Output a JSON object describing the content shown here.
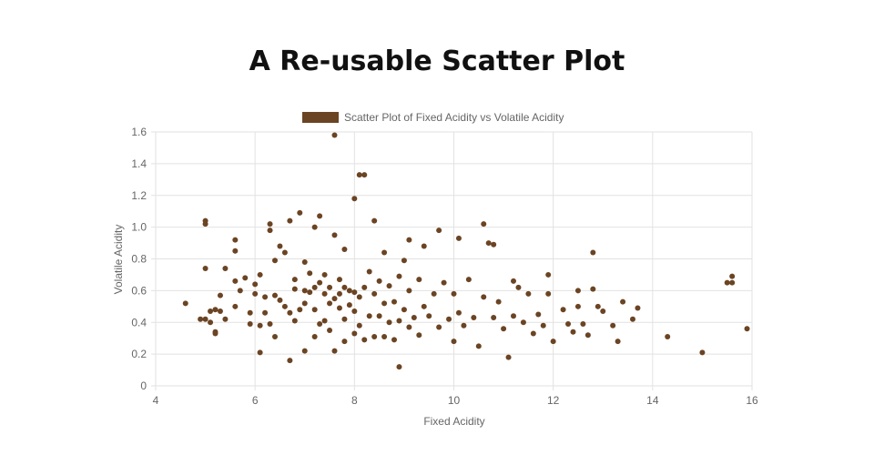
{
  "page": {
    "title": "A Re-usable Scatter Plot"
  },
  "chart_data": {
    "type": "scatter",
    "title": "",
    "xlabel": "Fixed Acidity",
    "ylabel": "Volatile Acidity",
    "xlim": [
      4,
      16
    ],
    "ylim": [
      0,
      1.6
    ],
    "xticks": [
      "4",
      "6",
      "8",
      "10",
      "12",
      "14",
      "16"
    ],
    "yticks": [
      "0",
      "0.2",
      "0.4",
      "0.6",
      "0.8",
      "1.0",
      "1.2",
      "1.4",
      "1.6"
    ],
    "grid": true,
    "legend_position": "top",
    "series": [
      {
        "name": "Scatter Plot of Fixed Acidity vs Volatile Acidity",
        "color": "#6b4423",
        "points": [
          [
            4.6,
            0.52
          ],
          [
            4.9,
            0.42
          ],
          [
            5.0,
            1.04
          ],
          [
            5.0,
            1.02
          ],
          [
            5.0,
            0.74
          ],
          [
            5.0,
            0.42
          ],
          [
            5.1,
            0.4
          ],
          [
            5.1,
            0.47
          ],
          [
            5.2,
            0.33
          ],
          [
            5.2,
            0.34
          ],
          [
            5.2,
            0.48
          ],
          [
            5.3,
            0.57
          ],
          [
            5.3,
            0.47
          ],
          [
            5.4,
            0.42
          ],
          [
            5.4,
            0.74
          ],
          [
            5.6,
            0.92
          ],
          [
            5.6,
            0.85
          ],
          [
            5.6,
            0.66
          ],
          [
            5.6,
            0.5
          ],
          [
            5.7,
            0.6
          ],
          [
            5.8,
            0.68
          ],
          [
            5.9,
            0.46
          ],
          [
            5.9,
            0.39
          ],
          [
            6.0,
            0.58
          ],
          [
            6.0,
            0.64
          ],
          [
            6.1,
            0.21
          ],
          [
            6.1,
            0.38
          ],
          [
            6.1,
            0.7
          ],
          [
            6.2,
            0.46
          ],
          [
            6.2,
            0.56
          ],
          [
            6.3,
            1.02
          ],
          [
            6.3,
            0.98
          ],
          [
            6.3,
            0.39
          ],
          [
            6.4,
            0.57
          ],
          [
            6.4,
            0.31
          ],
          [
            6.4,
            0.79
          ],
          [
            6.5,
            0.88
          ],
          [
            6.5,
            0.54
          ],
          [
            6.6,
            0.84
          ],
          [
            6.6,
            0.5
          ],
          [
            6.7,
            0.16
          ],
          [
            6.7,
            1.04
          ],
          [
            6.7,
            0.46
          ],
          [
            6.8,
            0.61
          ],
          [
            6.8,
            0.41
          ],
          [
            6.8,
            0.67
          ],
          [
            6.9,
            1.09
          ],
          [
            6.9,
            0.48
          ],
          [
            7.0,
            0.6
          ],
          [
            7.0,
            0.52
          ],
          [
            7.0,
            0.22
          ],
          [
            7.0,
            0.78
          ],
          [
            7.1,
            0.59
          ],
          [
            7.1,
            0.71
          ],
          [
            7.2,
            0.62
          ],
          [
            7.2,
            1.0
          ],
          [
            7.2,
            0.48
          ],
          [
            7.2,
            0.31
          ],
          [
            7.3,
            1.07
          ],
          [
            7.3,
            0.65
          ],
          [
            7.3,
            0.39
          ],
          [
            7.4,
            0.7
          ],
          [
            7.4,
            0.58
          ],
          [
            7.4,
            0.41
          ],
          [
            7.5,
            0.52
          ],
          [
            7.5,
            0.62
          ],
          [
            7.5,
            0.35
          ],
          [
            7.6,
            1.58
          ],
          [
            7.6,
            0.95
          ],
          [
            7.6,
            0.55
          ],
          [
            7.6,
            0.22
          ],
          [
            7.7,
            0.58
          ],
          [
            7.7,
            0.49
          ],
          [
            7.7,
            0.67
          ],
          [
            7.8,
            0.62
          ],
          [
            7.8,
            0.42
          ],
          [
            7.8,
            0.28
          ],
          [
            7.8,
            0.86
          ],
          [
            7.9,
            0.6
          ],
          [
            7.9,
            0.51
          ],
          [
            8.0,
            1.18
          ],
          [
            8.0,
            0.47
          ],
          [
            8.0,
            0.33
          ],
          [
            8.0,
            0.59
          ],
          [
            8.1,
            1.33
          ],
          [
            8.1,
            0.56
          ],
          [
            8.1,
            0.38
          ],
          [
            8.2,
            1.33
          ],
          [
            8.2,
            0.62
          ],
          [
            8.2,
            0.29
          ],
          [
            8.3,
            0.72
          ],
          [
            8.3,
            0.44
          ],
          [
            8.4,
            1.04
          ],
          [
            8.4,
            0.58
          ],
          [
            8.4,
            0.31
          ],
          [
            8.5,
            0.66
          ],
          [
            8.5,
            0.44
          ],
          [
            8.6,
            0.84
          ],
          [
            8.6,
            0.52
          ],
          [
            8.6,
            0.31
          ],
          [
            8.7,
            0.63
          ],
          [
            8.7,
            0.4
          ],
          [
            8.8,
            0.53
          ],
          [
            8.8,
            0.29
          ],
          [
            8.9,
            0.12
          ],
          [
            8.9,
            0.69
          ],
          [
            8.9,
            0.41
          ],
          [
            9.0,
            0.79
          ],
          [
            9.0,
            0.48
          ],
          [
            9.1,
            0.92
          ],
          [
            9.1,
            0.6
          ],
          [
            9.1,
            0.37
          ],
          [
            9.2,
            0.43
          ],
          [
            9.3,
            0.67
          ],
          [
            9.3,
            0.32
          ],
          [
            9.4,
            0.88
          ],
          [
            9.4,
            0.5
          ],
          [
            9.5,
            0.44
          ],
          [
            9.6,
            0.58
          ],
          [
            9.7,
            0.98
          ],
          [
            9.7,
            0.37
          ],
          [
            9.8,
            0.65
          ],
          [
            9.9,
            0.42
          ],
          [
            10.0,
            0.58
          ],
          [
            10.0,
            0.28
          ],
          [
            10.1,
            0.93
          ],
          [
            10.1,
            0.46
          ],
          [
            10.2,
            0.38
          ],
          [
            10.3,
            0.67
          ],
          [
            10.4,
            0.43
          ],
          [
            10.5,
            0.25
          ],
          [
            10.6,
            1.02
          ],
          [
            10.6,
            0.56
          ],
          [
            10.7,
            0.9
          ],
          [
            10.8,
            0.89
          ],
          [
            10.8,
            0.43
          ],
          [
            10.9,
            0.53
          ],
          [
            11.0,
            0.36
          ],
          [
            11.1,
            0.18
          ],
          [
            11.2,
            0.66
          ],
          [
            11.2,
            0.44
          ],
          [
            11.3,
            0.62
          ],
          [
            11.4,
            0.4
          ],
          [
            11.5,
            0.58
          ],
          [
            11.6,
            0.33
          ],
          [
            11.7,
            0.45
          ],
          [
            11.8,
            0.38
          ],
          [
            11.9,
            0.7
          ],
          [
            11.9,
            0.58
          ],
          [
            12.0,
            0.28
          ],
          [
            12.2,
            0.48
          ],
          [
            12.3,
            0.39
          ],
          [
            12.4,
            0.34
          ],
          [
            12.5,
            0.6
          ],
          [
            12.5,
            0.5
          ],
          [
            12.6,
            0.39
          ],
          [
            12.7,
            0.32
          ],
          [
            12.8,
            0.84
          ],
          [
            12.8,
            0.61
          ],
          [
            12.9,
            0.5
          ],
          [
            13.0,
            0.47
          ],
          [
            13.2,
            0.38
          ],
          [
            13.3,
            0.28
          ],
          [
            13.4,
            0.53
          ],
          [
            13.6,
            0.42
          ],
          [
            13.7,
            0.49
          ],
          [
            14.3,
            0.31
          ],
          [
            15.0,
            0.21
          ],
          [
            15.5,
            0.65
          ],
          [
            15.6,
            0.69
          ],
          [
            15.6,
            0.65
          ],
          [
            15.9,
            0.36
          ]
        ]
      }
    ]
  }
}
